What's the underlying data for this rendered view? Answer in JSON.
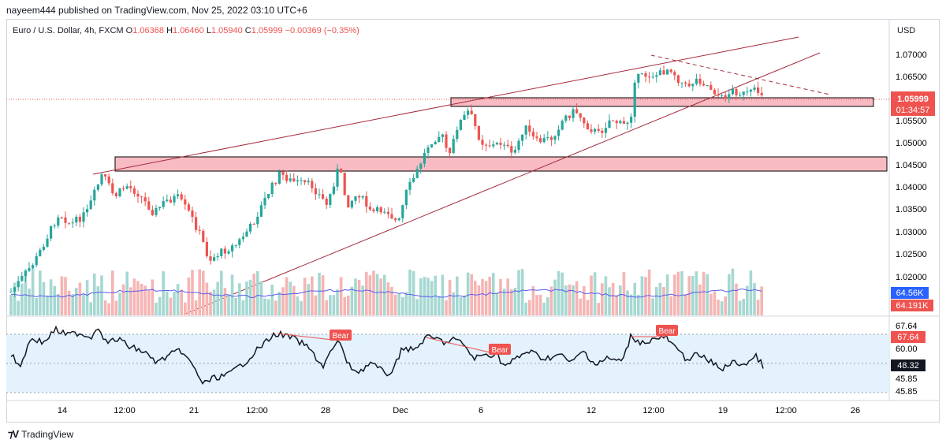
{
  "header": {
    "publish_text": "nayeem444 published on TradingView.com, Nov 25, 2022 03:10 UTC+6"
  },
  "legend": {
    "symbol": "Euro / U.S. Dollar, 4h, FXCM",
    "open_label": "O",
    "open": "1.06368",
    "high_label": "H",
    "high": "1.06460",
    "low_label": "L",
    "low": "1.05940",
    "close_label": "C",
    "close": "1.05999",
    "change": "−0.00369 (−0.35%)"
  },
  "price_axis": {
    "currency": "USD",
    "ticks": [
      "1.07000",
      "1.06500",
      "1.06000",
      "1.05500",
      "1.05000",
      "1.04500",
      "1.04000",
      "1.03500",
      "1.03000",
      "1.02500",
      "1.02000"
    ],
    "last_price": "1.05999",
    "countdown": "01:34:57",
    "volume_badge": "64.56K",
    "volume_ma_badge": "64.191K"
  },
  "rsi_axis": {
    "ticks": [
      "67.64",
      "60.00",
      "45.85",
      "45.85"
    ],
    "upper_badge": "67.64",
    "current_badge": "48.32"
  },
  "time_axis": {
    "labels": [
      "14",
      "12:00",
      "21",
      "12:00",
      "28",
      "Dec",
      "6",
      "12",
      "12:00",
      "19",
      "12:00",
      "26"
    ]
  },
  "signals": [
    "Bear",
    "Bear",
    "Bear"
  ],
  "footer": {
    "brand": "TradingView"
  },
  "colors": {
    "up": "#26a69a",
    "down": "#ef5350",
    "zone_fill": "#f8bbc4",
    "rsi_band": "#e3f2fd",
    "trendline": "#a52a3a",
    "vol_ma": "#5b5bf0"
  }
}
